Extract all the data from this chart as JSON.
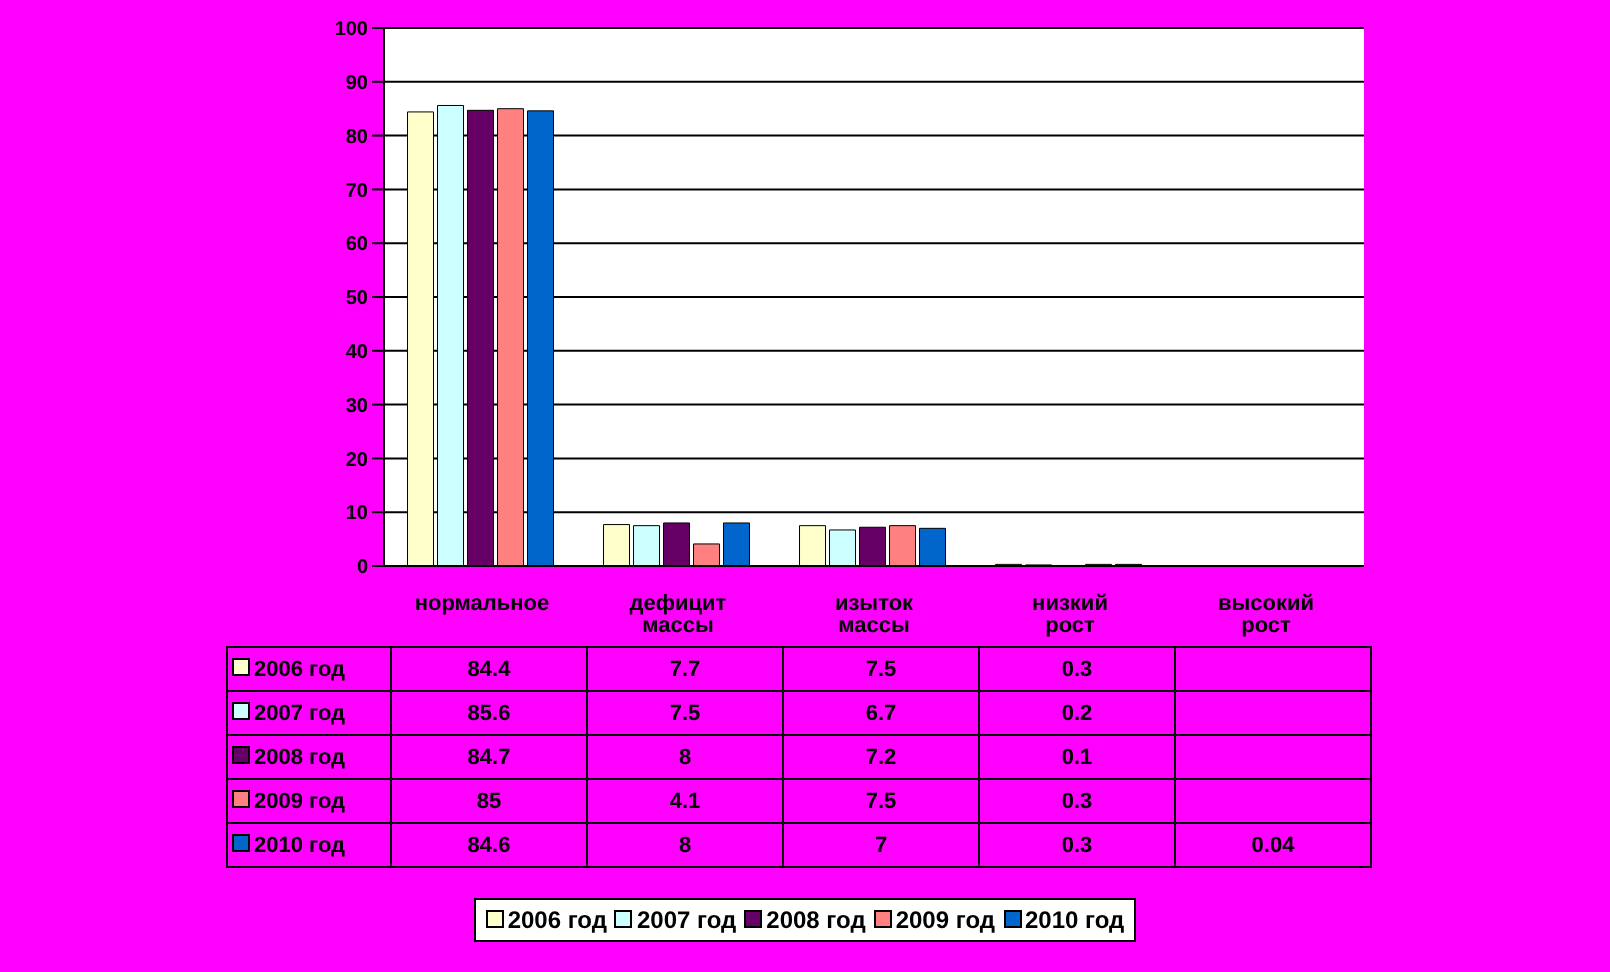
{
  "chart_data": {
    "type": "bar",
    "categories": [
      "нормальное",
      "дефицит массы",
      "изыток массы",
      "низкий рост",
      "высокий рост"
    ],
    "series": [
      {
        "name": "2006 год",
        "color": "#ffffcc",
        "values": [
          84.4,
          7.7,
          7.5,
          0.3,
          null
        ]
      },
      {
        "name": "2007 год",
        "color": "#ccffff",
        "values": [
          85.6,
          7.5,
          6.7,
          0.2,
          null
        ]
      },
      {
        "name": "2008 год",
        "color": "#660066",
        "values": [
          84.7,
          8,
          7.2,
          0.1,
          null
        ]
      },
      {
        "name": "2009 год",
        "color": "#ff8080",
        "values": [
          85,
          4.1,
          7.5,
          0.3,
          null
        ]
      },
      {
        "name": "2010 год",
        "color": "#0066cc",
        "values": [
          84.6,
          8,
          7,
          0.3,
          0.04
        ]
      }
    ],
    "ylim": [
      0,
      100
    ],
    "yticks": [
      0,
      10,
      20,
      30,
      40,
      50,
      60,
      70,
      80,
      90,
      100
    ],
    "grid": "y",
    "legend": "bottom",
    "data_labels": true
  }
}
